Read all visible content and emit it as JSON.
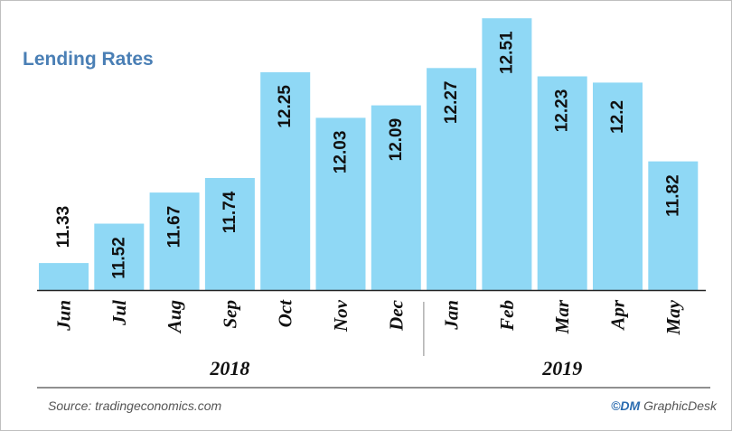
{
  "chart_data": {
    "type": "bar",
    "title": "Lending Rates",
    "categories": [
      "Jun",
      "Jul",
      "Aug",
      "Sep",
      "Oct",
      "Nov",
      "Dec",
      "Jan",
      "Feb",
      "Mar",
      "Apr",
      "May"
    ],
    "values": [
      11.33,
      11.52,
      11.67,
      11.74,
      12.25,
      12.03,
      12.09,
      12.27,
      12.51,
      12.23,
      12.2,
      11.82
    ],
    "value_labels": [
      "11.33",
      "11.52",
      "11.67",
      "11.74",
      "12.25",
      "12.03",
      "12.09",
      "12.27",
      "12.51",
      "12.23",
      "12.2",
      "11.82"
    ],
    "years": [
      {
        "label": "2018",
        "start_index": 0,
        "end_index": 6
      },
      {
        "label": "2019",
        "start_index": 7,
        "end_index": 11
      }
    ],
    "ylim": [
      11.2,
      12.55
    ],
    "grid": false,
    "colors": {
      "bar": "#8fd8f5",
      "title": "#4a7fb5",
      "axis": "#222222"
    }
  },
  "footer": {
    "source": "Source: tradingeconomics.com",
    "credit_prefix": "©DM ",
    "credit_brand": "GraphicDesk"
  }
}
